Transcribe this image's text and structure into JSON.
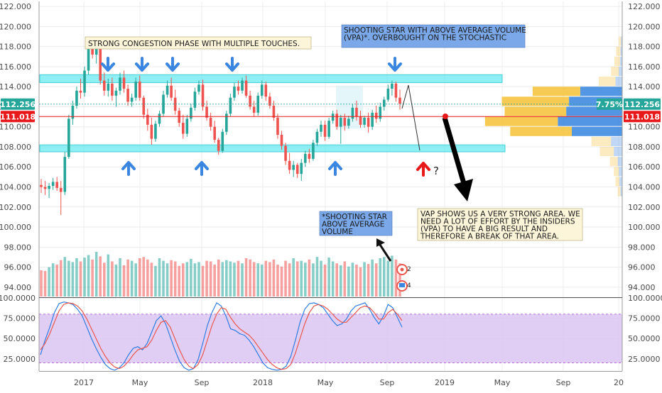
{
  "chart_data": [
    {
      "type": "candlestick",
      "ylim": [
        93,
        122.5
      ],
      "y_ticks": [
        "122.000",
        "120.000",
        "118.000",
        "116.000",
        "114.000",
        "112.000",
        "110.000",
        "108.000",
        "106.000",
        "104.000",
        "102.000",
        "100.000",
        "98.000",
        "96.000",
        "94.000"
      ],
      "x_labels": [
        "2017",
        "May",
        "Sep",
        "2018",
        "May",
        "Sep",
        "2019",
        "May",
        "Sep",
        "20"
      ],
      "ohlc": [
        [
          104.2,
          104.8,
          103.4,
          104.0
        ],
        [
          104.0,
          104.6,
          103.2,
          103.8
        ],
        [
          103.8,
          104.4,
          102.9,
          104.1
        ],
        [
          104.1,
          104.9,
          103.7,
          104.5
        ],
        [
          104.5,
          105.0,
          103.6,
          103.9
        ],
        [
          103.9,
          104.6,
          101.2,
          103.5
        ],
        [
          103.5,
          107.5,
          103.2,
          107.0
        ],
        [
          107.0,
          111.2,
          106.8,
          110.8
        ],
        [
          110.8,
          112.6,
          110.2,
          112.1
        ],
        [
          112.1,
          114.0,
          111.8,
          113.6
        ],
        [
          113.6,
          114.8,
          112.8,
          113.4
        ],
        [
          113.4,
          116.0,
          113.0,
          115.6
        ],
        [
          115.6,
          118.4,
          115.2,
          117.9
        ],
        [
          117.9,
          118.6,
          116.8,
          117.2
        ],
        [
          117.2,
          118.2,
          116.3,
          117.8
        ],
        [
          117.8,
          118.1,
          114.2,
          114.6
        ],
        [
          114.6,
          115.4,
          113.1,
          113.6
        ],
        [
          113.6,
          114.8,
          113.0,
          114.3
        ],
        [
          114.3,
          114.9,
          112.6,
          113.1
        ],
        [
          113.1,
          113.9,
          112.0,
          113.6
        ],
        [
          113.6,
          115.4,
          113.2,
          114.9
        ],
        [
          114.9,
          115.6,
          113.4,
          113.8
        ],
        [
          113.8,
          114.2,
          112.1,
          112.5
        ],
        [
          112.5,
          113.3,
          112.0,
          112.9
        ],
        [
          112.9,
          114.9,
          112.6,
          114.5
        ],
        [
          114.5,
          115.1,
          112.6,
          112.9
        ],
        [
          112.9,
          113.1,
          110.8,
          111.2
        ],
        [
          111.2,
          111.8,
          109.6,
          110.2
        ],
        [
          110.2,
          110.9,
          108.2,
          108.8
        ],
        [
          108.8,
          110.6,
          108.5,
          110.3
        ],
        [
          110.3,
          111.6,
          110.0,
          111.3
        ],
        [
          111.3,
          113.6,
          111.0,
          113.2
        ],
        [
          113.2,
          114.6,
          112.9,
          114.1
        ],
        [
          114.1,
          114.9,
          112.6,
          112.9
        ],
        [
          112.9,
          113.7,
          111.2,
          111.6
        ],
        [
          111.6,
          111.9,
          110.0,
          110.4
        ],
        [
          110.4,
          111.2,
          108.8,
          109.3
        ],
        [
          109.3,
          111.2,
          109.0,
          110.8
        ],
        [
          110.8,
          112.3,
          110.5,
          111.9
        ],
        [
          111.9,
          113.9,
          111.6,
          113.5
        ],
        [
          113.5,
          114.6,
          113.2,
          114.2
        ],
        [
          114.2,
          114.7,
          111.6,
          112.0
        ],
        [
          112.0,
          112.6,
          110.6,
          110.9
        ],
        [
          110.9,
          111.4,
          109.6,
          110.0
        ],
        [
          110.0,
          110.6,
          108.4,
          108.7
        ],
        [
          108.7,
          108.9,
          107.2,
          107.6
        ],
        [
          107.6,
          109.8,
          107.4,
          109.5
        ],
        [
          109.5,
          111.6,
          109.2,
          111.3
        ],
        [
          111.3,
          113.3,
          111.0,
          112.9
        ],
        [
          112.9,
          114.4,
          112.6,
          114.0
        ],
        [
          114.0,
          114.6,
          113.2,
          113.6
        ],
        [
          113.6,
          114.9,
          113.3,
          114.6
        ],
        [
          114.6,
          115.1,
          112.9,
          113.1
        ],
        [
          113.1,
          113.6,
          111.7,
          112.0
        ],
        [
          112.0,
          112.6,
          111.0,
          111.4
        ],
        [
          111.4,
          113.4,
          111.1,
          113.1
        ],
        [
          113.1,
          114.6,
          112.8,
          114.2
        ],
        [
          114.2,
          114.5,
          112.6,
          113.0
        ],
        [
          113.0,
          113.4,
          111.8,
          112.1
        ],
        [
          112.1,
          112.6,
          110.6,
          110.9
        ],
        [
          110.9,
          111.3,
          108.8,
          109.2
        ],
        [
          109.2,
          109.6,
          107.7,
          108.1
        ],
        [
          108.1,
          108.4,
          106.2,
          106.6
        ],
        [
          106.6,
          107.4,
          105.3,
          105.7
        ],
        [
          105.7,
          106.6,
          105.0,
          106.2
        ],
        [
          106.2,
          106.4,
          104.9,
          105.3
        ],
        [
          105.3,
          106.8,
          104.6,
          106.4
        ],
        [
          106.4,
          107.6,
          106.0,
          107.3
        ],
        [
          107.3,
          107.8,
          106.4,
          106.8
        ],
        [
          106.8,
          108.7,
          106.6,
          108.4
        ],
        [
          108.4,
          109.8,
          108.1,
          109.5
        ],
        [
          109.5,
          110.6,
          109.0,
          110.2
        ],
        [
          110.2,
          110.6,
          108.6,
          109.0
        ],
        [
          109.0,
          110.9,
          108.8,
          110.6
        ],
        [
          110.6,
          111.6,
          110.3,
          111.3
        ],
        [
          111.3,
          111.7,
          109.7,
          110.0
        ],
        [
          110.0,
          111.2,
          108.3,
          110.9
        ],
        [
          110.9,
          111.3,
          109.6,
          110.1
        ],
        [
          110.1,
          111.1,
          109.8,
          110.8
        ],
        [
          110.8,
          112.3,
          110.5,
          111.9
        ],
        [
          111.9,
          112.6,
          110.6,
          111.0
        ],
        [
          111.0,
          111.6,
          109.9,
          110.2
        ],
        [
          110.2,
          111.1,
          109.9,
          110.9
        ],
        [
          110.9,
          111.4,
          109.4,
          110.0
        ],
        [
          110.0,
          111.7,
          109.7,
          111.4
        ],
        [
          111.4,
          112.1,
          110.4,
          110.8
        ],
        [
          110.8,
          112.4,
          110.5,
          112.0
        ],
        [
          112.0,
          113.0,
          111.6,
          112.7
        ],
        [
          112.7,
          114.2,
          112.5,
          113.8
        ],
        [
          113.8,
          114.6,
          113.1,
          114.3
        ],
        [
          114.3,
          114.5,
          112.5,
          112.9
        ],
        [
          112.9,
          113.7,
          111.7,
          112.3
        ]
      ],
      "volume": [
        41,
        40,
        46,
        52,
        50,
        57,
        62,
        56,
        54,
        60,
        55,
        61,
        65,
        58,
        70,
        63,
        53,
        66,
        55,
        50,
        60,
        49,
        58,
        56,
        52,
        60,
        62,
        58,
        53,
        48,
        60,
        56,
        52,
        57,
        55,
        48,
        52,
        54,
        59,
        52,
        54,
        48,
        56,
        55,
        50,
        58,
        54,
        57,
        55,
        53,
        56,
        52,
        60,
        58,
        54,
        52,
        50,
        56,
        54,
        58,
        50,
        47,
        56,
        52,
        60,
        55,
        56,
        53,
        58,
        52,
        62,
        56,
        50,
        61,
        55,
        52,
        49,
        55,
        47,
        53,
        50,
        46,
        54,
        51,
        58,
        52,
        60,
        62,
        56,
        64,
        58,
        52
      ],
      "current_price_label": "112.256",
      "change_label": "7.75%",
      "support_level_label": "111.018",
      "resistance_zone": [
        114.4,
        115.2
      ],
      "support_zone": [
        107.5,
        108.2
      ],
      "volume_profile": [
        {
          "price": 118.5,
          "buy": 4,
          "sell": 2
        },
        {
          "price": 117.5,
          "buy": 8,
          "sell": 3
        },
        {
          "price": 116.5,
          "buy": 10,
          "sell": 4
        },
        {
          "price": 115.5,
          "buy": 14,
          "sell": 6
        },
        {
          "price": 114.5,
          "buy": 30,
          "sell": 12
        },
        {
          "price": 113.5,
          "buy": 85,
          "sell": 75
        },
        {
          "price": 112.5,
          "buy": 120,
          "sell": 95
        },
        {
          "price": 111.5,
          "buy": 110,
          "sell": 100
        },
        {
          "price": 110.5,
          "buy": 130,
          "sell": 115
        },
        {
          "price": 109.5,
          "buy": 110,
          "sell": 90
        },
        {
          "price": 108.5,
          "buy": 35,
          "sell": 20
        },
        {
          "price": 107.5,
          "buy": 25,
          "sell": 15
        },
        {
          "price": 106.5,
          "buy": 14,
          "sell": 8
        },
        {
          "price": 105.5,
          "buy": 9,
          "sell": 6
        },
        {
          "price": 104.5,
          "buy": 7,
          "sell": 5
        },
        {
          "price": 103.5,
          "buy": 5,
          "sell": 3
        }
      ]
    },
    {
      "type": "line",
      "ylim": [
        10,
        100
      ],
      "y_ticks": [
        "100.0000",
        "75.0000",
        "50.0000",
        "25.0000"
      ],
      "band": [
        20,
        80
      ],
      "series": [
        {
          "color": "#2f7de1",
          "values": [
            30,
            48,
            64,
            82,
            93,
            95,
            94,
            92,
            86,
            78,
            64,
            50,
            38,
            27,
            18,
            13,
            11,
            14,
            20,
            30,
            38,
            40,
            36,
            44,
            58,
            72,
            78,
            68,
            52,
            36,
            22,
            14,
            11,
            13,
            24,
            44,
            66,
            82,
            94,
            90,
            78,
            62,
            60,
            56,
            54,
            48,
            40,
            30,
            20,
            14,
            12,
            11,
            12,
            16,
            28,
            48,
            70,
            86,
            93,
            94,
            92,
            88,
            80,
            72,
            66,
            68,
            74,
            84,
            90,
            92,
            94,
            86,
            76,
            68,
            78,
            92,
            88,
            76,
            64
          ]
        },
        {
          "color": "#e8584f",
          "values": [
            36,
            44,
            56,
            70,
            84,
            92,
            94,
            93,
            90,
            84,
            74,
            62,
            50,
            38,
            28,
            20,
            15,
            13,
            16,
            22,
            30,
            36,
            38,
            40,
            48,
            60,
            70,
            72,
            64,
            50,
            36,
            24,
            16,
            13,
            18,
            30,
            48,
            66,
            80,
            88,
            86,
            76,
            68,
            62,
            58,
            54,
            48,
            40,
            32,
            24,
            18,
            14,
            12,
            13,
            18,
            32,
            50,
            68,
            82,
            90,
            92,
            90,
            86,
            80,
            74,
            70,
            70,
            76,
            82,
            88,
            90,
            88,
            82,
            74,
            74,
            82,
            86,
            80,
            72
          ]
        }
      ]
    }
  ],
  "annotations": {
    "congestion": "STRONG CONGESTION PHASE WITH MULTIPLE TOUCHES.",
    "shooting_star": "SHOOTING STAR WITH ABOVE AVERAGE VOLUME (VPA)*. OVERBOUGHT ON THE STOCHASTIC",
    "shooting_star_volume": "*SHOOTING STAR ABOVE AVERAGE VOLUME",
    "vap": "VAP SHOWS US A VERY STRONG AREA. WE NEED A LOT OF EFFORT BY THE INSIDERS (VPA) TO HAVE A BIG RESULT AND THEREFORE A BREAK OF THAT AREA.",
    "question": "?",
    "event_count_1": "2",
    "event_count_2": "4"
  },
  "colors": {
    "up": "#26a69a",
    "down": "#ef5350",
    "zone": "#5ee8ef",
    "profile_buy": "#f5c74a",
    "profile_sell": "#4a90e2",
    "stoch_band": "#dcc5f3",
    "label_green": "#26a69a",
    "label_red": "#e8191b"
  }
}
